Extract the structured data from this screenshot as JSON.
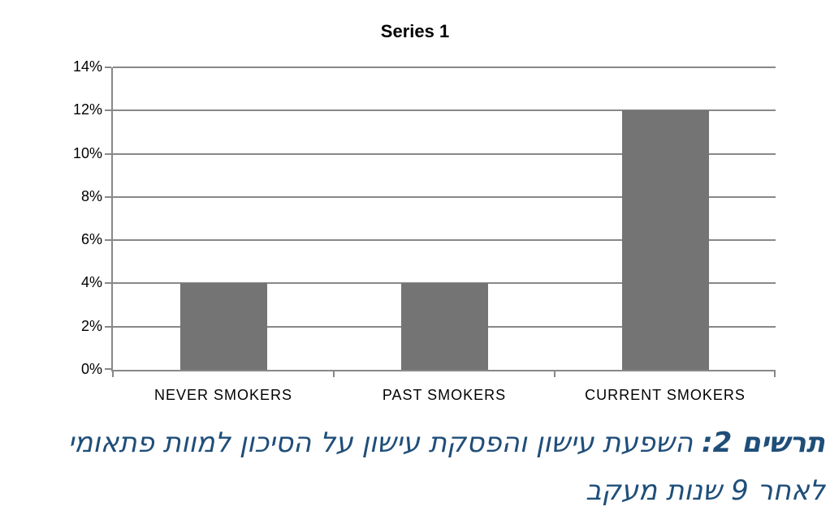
{
  "chart_data": {
    "type": "bar",
    "title": "Series 1",
    "categories": [
      "NEVER SMOKERS",
      "PAST SMOKERS",
      "CURRENT SMOKERS"
    ],
    "values": [
      4,
      4,
      12
    ],
    "value_unit": "%",
    "xlabel": "",
    "ylabel": "",
    "ylim": [
      0,
      14
    ],
    "ytick_step": 2,
    "ytick_labels": [
      "0%",
      "2%",
      "4%",
      "6%",
      "8%",
      "10%",
      "12%",
      "14%"
    ],
    "grid": "horizontal",
    "legend_position": "none",
    "bar_color": "#747474",
    "axis_color": "#888888",
    "text_color": "#000000"
  },
  "caption": {
    "prefix_bold": "תרשים 2:",
    "line1": "השפעת עישון והפסקת עישון על הסיכון למוות פתאומי",
    "line2": "לאחר 9 שנות מעקב",
    "color": "#1f4e79"
  }
}
